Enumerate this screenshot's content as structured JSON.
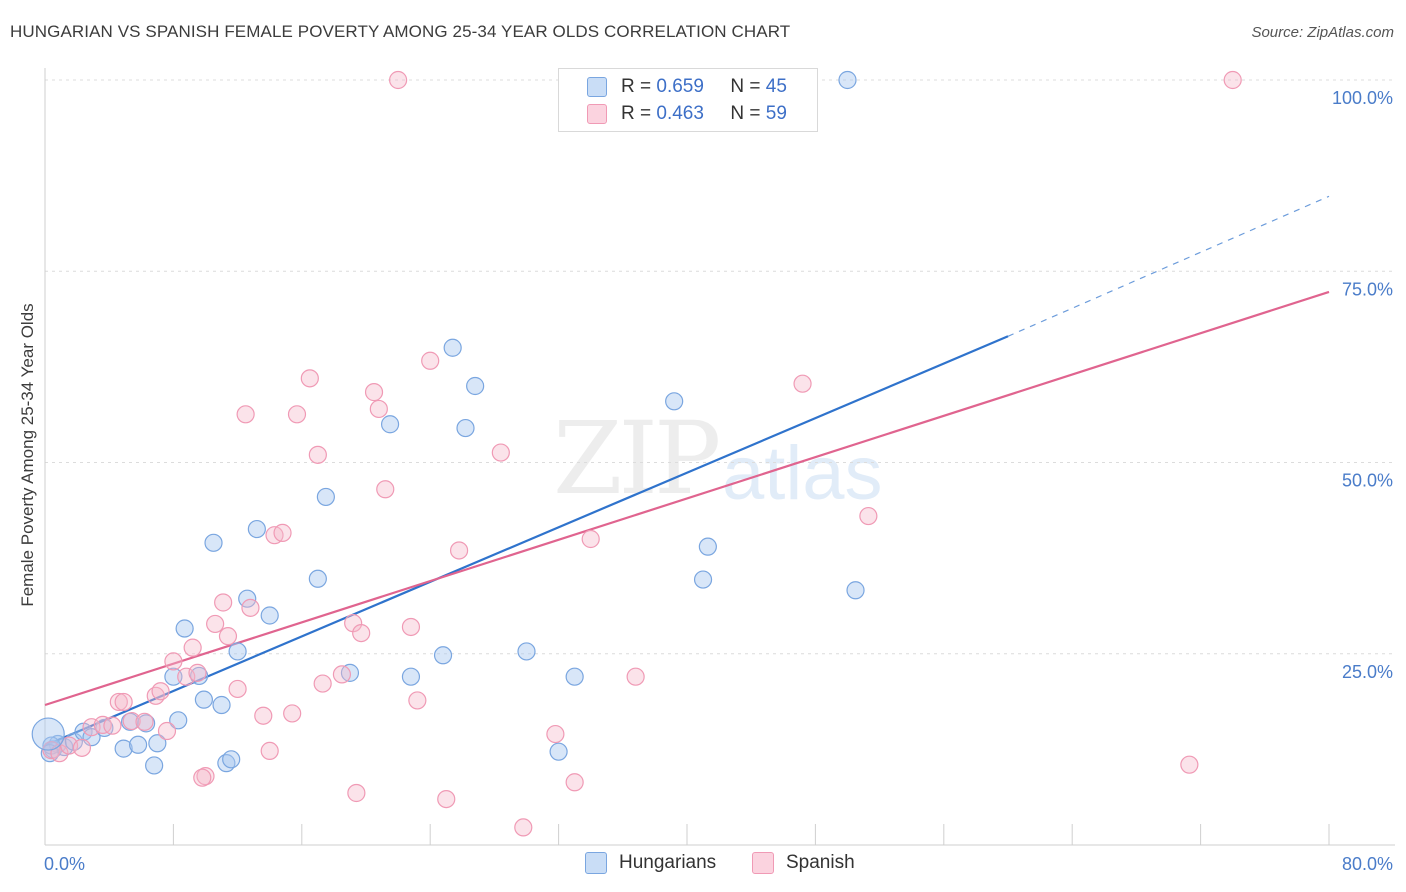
{
  "title": "HUNGARIAN VS SPANISH FEMALE POVERTY AMONG 25-34 YEAR OLDS CORRELATION CHART",
  "source": "Source: ZipAtlas.com",
  "watermark": {
    "zip": "ZIP",
    "atlas": "atlas"
  },
  "legend": {
    "rows": [
      {
        "r_label": "R =",
        "r_value": "0.659",
        "n_label": "N =",
        "n_value": "45",
        "color": "#a9c8f0"
      },
      {
        "r_label": "R =",
        "r_value": "0.463",
        "n_label": "N =",
        "n_value": "59",
        "color": "#f6b8cb"
      }
    ]
  },
  "bottom_legend": [
    {
      "label": "Hungarians",
      "color": "#a9c8f0"
    },
    {
      "label": "Spanish",
      "color": "#f6b8cb"
    }
  ],
  "chart_data": {
    "type": "scatter",
    "title": "HUNGARIAN VS SPANISH FEMALE POVERTY AMONG 25-34 YEAR OLDS CORRELATION CHART",
    "xlabel": "",
    "ylabel": "Female Poverty Among 25-34 Year Olds",
    "xlim": [
      0,
      80
    ],
    "ylim": [
      0,
      100
    ],
    "x_tick_labels": [
      "0.0%",
      "80.0%"
    ],
    "y_ticks": [
      25,
      50,
      75,
      100
    ],
    "y_tick_labels": [
      "25.0%",
      "50.0%",
      "75.0%",
      "100.0%"
    ],
    "grid": true,
    "colors": {
      "Hungarians": "#7aa6e0",
      "Spanish": "#f09ab5",
      "hun_line": "#2f73cc",
      "spa_line": "#e0648f"
    },
    "series": [
      {
        "name": "Hungarians",
        "points": [
          [
            0.5,
            12.5
          ],
          [
            0.8,
            13.2
          ],
          [
            1.2,
            12.8
          ],
          [
            1.8,
            13.5
          ],
          [
            2.4,
            14.8
          ],
          [
            2.9,
            14.1
          ],
          [
            3.7,
            15.3
          ],
          [
            4.9,
            12.6
          ],
          [
            5.3,
            16.1
          ],
          [
            5.8,
            13.1
          ],
          [
            6.3,
            15.9
          ],
          [
            6.8,
            10.4
          ],
          [
            7.0,
            13.3
          ],
          [
            8.0,
            22.0
          ],
          [
            8.3,
            16.3
          ],
          [
            8.7,
            28.3
          ],
          [
            9.6,
            22.1
          ],
          [
            9.9,
            19.0
          ],
          [
            10.5,
            39.5
          ],
          [
            11.0,
            18.3
          ],
          [
            11.3,
            10.7
          ],
          [
            11.6,
            11.2
          ],
          [
            12.0,
            25.3
          ],
          [
            12.6,
            32.2
          ],
          [
            13.2,
            41.3
          ],
          [
            14.0,
            30.0
          ],
          [
            17.0,
            34.8
          ],
          [
            17.5,
            45.5
          ],
          [
            19.0,
            22.5
          ],
          [
            21.5,
            55.0
          ],
          [
            22.8,
            22.0
          ],
          [
            24.8,
            24.8
          ],
          [
            25.4,
            65.0
          ],
          [
            26.2,
            54.5
          ],
          [
            26.8,
            60.0
          ],
          [
            30.0,
            25.3
          ],
          [
            32.0,
            12.2
          ],
          [
            33.0,
            22.0
          ],
          [
            39.2,
            58.0
          ],
          [
            41.0,
            34.7
          ],
          [
            41.3,
            39.0
          ],
          [
            50.5,
            33.3
          ],
          [
            50.0,
            100.0
          ],
          [
            0.4,
            13.0
          ],
          [
            0.3,
            12.0
          ]
        ]
      },
      {
        "name": "Spanish",
        "points": [
          [
            0.4,
            12.4
          ],
          [
            0.9,
            12.0
          ],
          [
            1.5,
            13.0
          ],
          [
            2.3,
            12.7
          ],
          [
            2.9,
            15.4
          ],
          [
            3.6,
            15.7
          ],
          [
            4.2,
            15.6
          ],
          [
            4.6,
            18.7
          ],
          [
            4.9,
            18.7
          ],
          [
            5.4,
            16.2
          ],
          [
            6.2,
            16.1
          ],
          [
            6.9,
            19.5
          ],
          [
            7.2,
            20.1
          ],
          [
            7.6,
            14.9
          ],
          [
            8.0,
            24.0
          ],
          [
            8.8,
            22.0
          ],
          [
            9.2,
            25.8
          ],
          [
            9.5,
            22.5
          ],
          [
            10.0,
            9.0
          ],
          [
            10.6,
            28.9
          ],
          [
            11.1,
            31.7
          ],
          [
            11.4,
            27.3
          ],
          [
            12.0,
            20.4
          ],
          [
            12.5,
            56.3
          ],
          [
            12.8,
            31.0
          ],
          [
            13.6,
            16.9
          ],
          [
            14.0,
            12.3
          ],
          [
            14.3,
            40.5
          ],
          [
            14.8,
            40.8
          ],
          [
            15.4,
            17.2
          ],
          [
            15.7,
            56.3
          ],
          [
            16.5,
            61.0
          ],
          [
            17.0,
            51.0
          ],
          [
            17.3,
            21.1
          ],
          [
            18.5,
            22.3
          ],
          [
            19.2,
            29.0
          ],
          [
            19.7,
            27.7
          ],
          [
            20.5,
            59.2
          ],
          [
            20.8,
            57.0
          ],
          [
            21.2,
            46.5
          ],
          [
            22.0,
            100.0
          ],
          [
            22.8,
            28.5
          ],
          [
            23.2,
            18.9
          ],
          [
            24.0,
            63.3
          ],
          [
            25.0,
            6.0
          ],
          [
            25.8,
            38.5
          ],
          [
            28.4,
            51.3
          ],
          [
            29.8,
            2.3
          ],
          [
            31.8,
            14.5
          ],
          [
            33.0,
            8.2
          ],
          [
            34.0,
            40.0
          ],
          [
            36.8,
            22.0
          ],
          [
            47.2,
            60.3
          ],
          [
            51.3,
            43.0
          ],
          [
            71.3,
            10.5
          ],
          [
            74.0,
            100.0
          ],
          [
            47.0,
            100.0
          ],
          [
            9.8,
            8.8
          ],
          [
            19.4,
            6.8
          ]
        ]
      }
    ],
    "trendlines": [
      {
        "name": "Hungarians",
        "from": [
          0,
          13.0
        ],
        "to": [
          60,
          66.5
        ],
        "dashed_to": [
          80,
          84.8
        ]
      },
      {
        "name": "Spanish",
        "from": [
          0,
          18.3
        ],
        "to": [
          80,
          72.3
        ]
      }
    ]
  }
}
